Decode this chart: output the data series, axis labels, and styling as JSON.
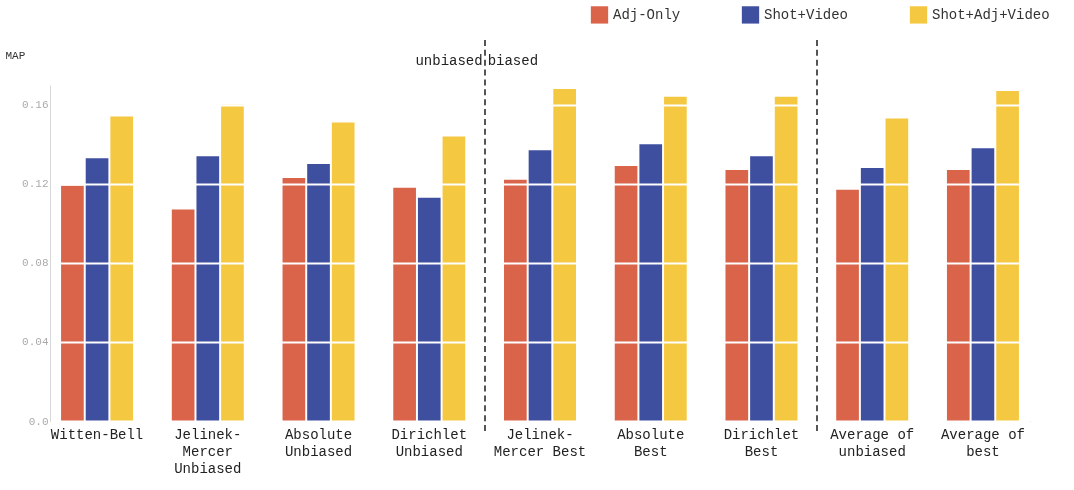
{
  "chart_data": {
    "type": "bar",
    "ylabel": "MAP",
    "categories": [
      "Witten-Bell",
      "Jelinek-Mercer Unbiased",
      "Absolute Unbiased",
      "Dirichlet Unbiased",
      "Jelinek-Mercer Best",
      "Absolute Best",
      "Dirichlet Best",
      "Average of unbiased",
      "Average of best"
    ],
    "series": [
      {
        "name": "Adj-Only",
        "color": "#d9644a",
        "values": [
          0.119,
          0.107,
          0.123,
          0.118,
          0.122,
          0.129,
          0.127,
          0.117,
          0.127
        ]
      },
      {
        "name": "Shot+Video",
        "color": "#3f4fa0",
        "values": [
          0.133,
          0.134,
          0.13,
          0.113,
          0.137,
          0.14,
          0.134,
          0.128,
          0.138
        ]
      },
      {
        "name": "Shot+Adj+Video",
        "color": "#f5c842",
        "values": [
          0.154,
          0.16,
          0.151,
          0.144,
          0.168,
          0.164,
          0.164,
          0.153,
          0.167
        ]
      }
    ],
    "ylim": [
      0,
      0.17
    ],
    "yticks": [
      {
        "value": 0,
        "label": "0.0"
      },
      0.04,
      0.08,
      0.12,
      0.16
    ],
    "grid": "y",
    "legend": "top right",
    "annotations": [
      "unbiased",
      "biased"
    ]
  }
}
